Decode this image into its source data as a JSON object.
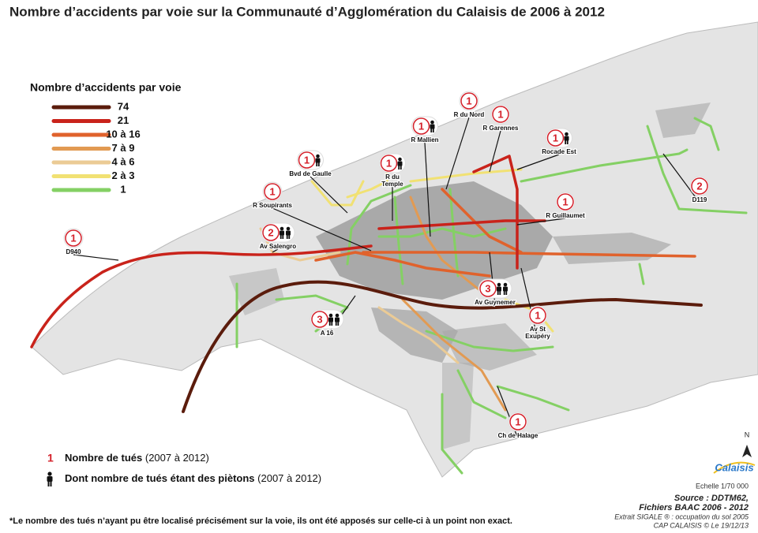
{
  "title": "Nombre d’accidents par voie sur la Communauté d’Agglomération du Calaisis de 2006 à 2012",
  "legend": {
    "title": "Nombre d’accidents par voie",
    "items": [
      {
        "label": "74",
        "color": "#5b1c0c"
      },
      {
        "label": "21",
        "color": "#c9231b"
      },
      {
        "label": "10 à 16",
        "color": "#e0622c"
      },
      {
        "label": "7 à 9",
        "color": "#e29a52"
      },
      {
        "label": "4 à 6",
        "color": "#ebcb95"
      },
      {
        "label": "2 à 3",
        "color": "#f1e173"
      },
      {
        "label": "1",
        "color": "#84d064"
      }
    ]
  },
  "markers": [
    {
      "killed": "1",
      "pedestrians": 0,
      "label": [
        "D940"
      ]
    },
    {
      "killed": "1",
      "pedestrians": 0,
      "label": [
        "R Soupirants"
      ]
    },
    {
      "killed": "1",
      "pedestrians": 1,
      "label": [
        "Bvd de Gaulle"
      ]
    },
    {
      "killed": "1",
      "pedestrians": 1,
      "label": [
        "R du",
        "Temple"
      ]
    },
    {
      "killed": "1",
      "pedestrians": 1,
      "label": [
        "R Mallien"
      ]
    },
    {
      "killed": "1",
      "pedestrians": 0,
      "label": [
        "R du Nord"
      ]
    },
    {
      "killed": "1",
      "pedestrians": 0,
      "label": [
        "R Garennes"
      ]
    },
    {
      "killed": "1",
      "pedestrians": 1,
      "label": [
        "Rocade Est"
      ]
    },
    {
      "killed": "1",
      "pedestrians": 0,
      "label": [
        "R Guillaumet"
      ]
    },
    {
      "killed": "2",
      "pedestrians": 0,
      "label": [
        "D119"
      ]
    },
    {
      "killed": "2",
      "pedestrians": 2,
      "label": [
        "Av Salengro"
      ]
    },
    {
      "killed": "3",
      "pedestrians": 2,
      "label": [
        "Av Guynemer"
      ]
    },
    {
      "killed": "3",
      "pedestrians": 2,
      "label": [
        "A 16"
      ]
    },
    {
      "killed": "1",
      "pedestrians": 0,
      "label": [
        "Av St",
        "Exupéry"
      ]
    },
    {
      "killed": "1",
      "pedestrians": 0,
      "label": [
        "Ch de Halage"
      ]
    }
  ],
  "key": {
    "killed_symbol": "1",
    "killed_text": "Nombre de tués",
    "killed_period": "(2007 à 2012)",
    "pedestrian_text": "Dont nombre de tués étant des piètons",
    "pedestrian_period": "(2007 à 2012)"
  },
  "north": "N",
  "logo": "Calaisis",
  "scale": "Echelle 1/70 000",
  "source": [
    "Source : DDTM62,",
    "Fichiers BAAC 2006 - 2012"
  ],
  "credits": [
    "Extrait SIGALE ® : occupation du sol 2005",
    "CAP CALAISIS © Le 19/12/13"
  ],
  "footnote": "*Le nombre des tués n’ayant pu être localisé précisément sur la voie, ils ont été apposés sur celle-ci à un point non exact."
}
